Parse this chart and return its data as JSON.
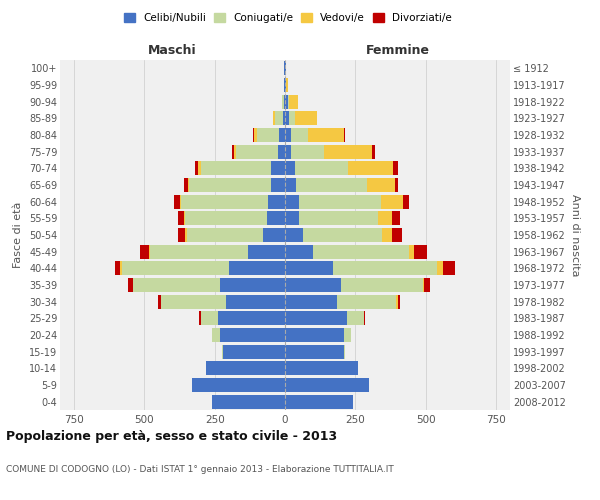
{
  "age_groups": [
    "0-4",
    "5-9",
    "10-14",
    "15-19",
    "20-24",
    "25-29",
    "30-34",
    "35-39",
    "40-44",
    "45-49",
    "50-54",
    "55-59",
    "60-64",
    "65-69",
    "70-74",
    "75-79",
    "80-84",
    "85-89",
    "90-94",
    "95-99",
    "100+"
  ],
  "birth_years": [
    "2008-2012",
    "2003-2007",
    "1998-2002",
    "1993-1997",
    "1988-1992",
    "1983-1987",
    "1978-1982",
    "1973-1977",
    "1968-1972",
    "1963-1967",
    "1958-1962",
    "1953-1957",
    "1948-1952",
    "1943-1947",
    "1938-1942",
    "1933-1937",
    "1928-1932",
    "1923-1927",
    "1918-1922",
    "1913-1917",
    "≤ 1912"
  ],
  "males": {
    "celibi": [
      260,
      330,
      280,
      220,
      230,
      240,
      210,
      230,
      200,
      130,
      80,
      65,
      60,
      50,
      50,
      25,
      20,
      6,
      5,
      4,
      2
    ],
    "coniugati": [
      0,
      0,
      0,
      5,
      30,
      60,
      230,
      310,
      380,
      350,
      270,
      290,
      310,
      290,
      250,
      150,
      80,
      30,
      5,
      0,
      0
    ],
    "vedovi": [
      0,
      0,
      0,
      0,
      0,
      0,
      0,
      0,
      5,
      5,
      5,
      5,
      5,
      5,
      10,
      5,
      10,
      5,
      2,
      0,
      0
    ],
    "divorziati": [
      0,
      0,
      0,
      0,
      0,
      5,
      10,
      20,
      20,
      30,
      25,
      20,
      20,
      15,
      10,
      10,
      5,
      0,
      0,
      0,
      0
    ]
  },
  "females": {
    "nubili": [
      240,
      300,
      260,
      210,
      210,
      220,
      185,
      200,
      170,
      100,
      65,
      50,
      50,
      40,
      35,
      20,
      20,
      15,
      10,
      5,
      2
    ],
    "coniugate": [
      0,
      0,
      0,
      5,
      25,
      60,
      210,
      290,
      370,
      340,
      280,
      280,
      290,
      250,
      190,
      120,
      60,
      20,
      5,
      0,
      0
    ],
    "vedove": [
      0,
      0,
      0,
      0,
      0,
      0,
      5,
      5,
      20,
      20,
      35,
      50,
      80,
      100,
      160,
      170,
      130,
      80,
      30,
      5,
      0
    ],
    "divorziate": [
      0,
      0,
      0,
      0,
      0,
      5,
      10,
      20,
      45,
      45,
      35,
      30,
      20,
      10,
      15,
      10,
      5,
      0,
      0,
      0,
      0
    ]
  },
  "colors": {
    "celibi": "#4472C4",
    "coniugati": "#C5D9A0",
    "vedovi": "#F5C842",
    "divorziati": "#C00000"
  },
  "xlim": 800,
  "xticks": [
    -750,
    -500,
    -250,
    0,
    250,
    500,
    750
  ],
  "title": "Popolazione per età, sesso e stato civile - 2013",
  "subtitle": "COMUNE DI CODOGNO (LO) - Dati ISTAT 1° gennaio 2013 - Elaborazione TUTTITALIA.IT",
  "ylabel_left": "Fasce di età",
  "ylabel_right": "Anni di nascita",
  "xlabel_left": "Maschi",
  "xlabel_right": "Femmine",
  "legend_labels": [
    "Celibi/Nubili",
    "Coniugati/e",
    "Vedovi/e",
    "Divorziati/e"
  ],
  "background_color": "#ffffff",
  "plot_bg_color": "#f0f0f0",
  "grid_color": "#cccccc"
}
